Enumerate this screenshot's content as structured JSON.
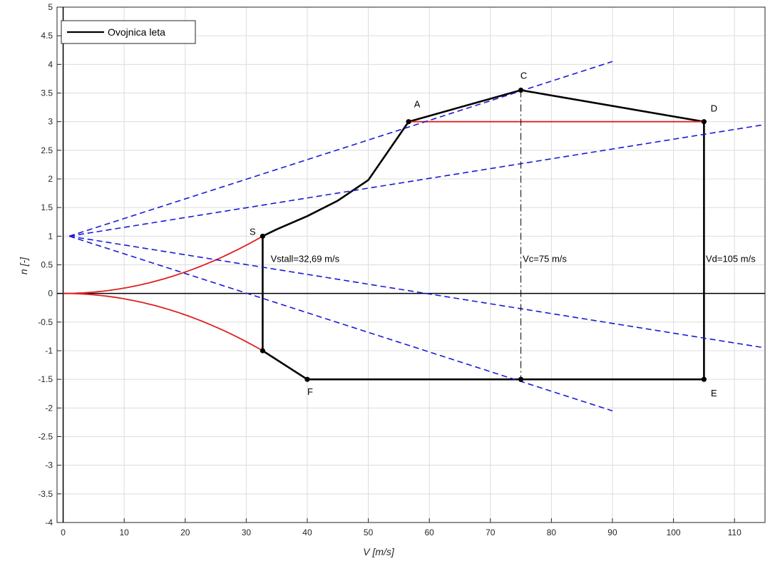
{
  "chart_data": {
    "type": "line",
    "xlabel": "V [m/s]",
    "ylabel": "n [-]",
    "xlim": [
      -1,
      115
    ],
    "ylim": [
      -4,
      5
    ],
    "xticks": [
      0,
      10,
      20,
      30,
      40,
      50,
      60,
      70,
      80,
      90,
      100,
      110
    ],
    "yticks": [
      5,
      4.5,
      4,
      3.5,
      3,
      2.5,
      2,
      1.5,
      1,
      0.5,
      0,
      -0.5,
      -1,
      -1.5,
      -2,
      -2.5,
      -3,
      -3.5,
      -4
    ],
    "grid": true,
    "legend": {
      "location": "top-left",
      "entries": [
        "Ovojnica leta"
      ]
    },
    "series": [
      {
        "name": "Ovojnica leta",
        "style": "solid",
        "color": "#000000",
        "points": [
          [
            32.69,
            1.0
          ],
          [
            35,
            1.12
          ],
          [
            40,
            1.35
          ],
          [
            45,
            1.62
          ],
          [
            50,
            1.98
          ],
          [
            56.6,
            3.0
          ],
          [
            75,
            3.55
          ],
          [
            105,
            3.0
          ],
          [
            105,
            -1.5
          ],
          [
            75,
            -1.5
          ],
          [
            40,
            -1.5
          ],
          [
            32.69,
            -1.0
          ],
          [
            32.69,
            1.0
          ]
        ],
        "markers": [
          [
            32.69,
            1.0
          ],
          [
            56.6,
            3.0
          ],
          [
            75,
            3.55
          ],
          [
            105,
            3.0
          ],
          [
            105,
            -1.5
          ],
          [
            75,
            -1.5
          ],
          [
            40,
            -1.5
          ],
          [
            32.69,
            -1.0
          ]
        ]
      },
      {
        "style": "solid",
        "color": "#e02020",
        "kind": "stall-curve",
        "sign": 1,
        "v_stall": 32.69
      },
      {
        "style": "solid",
        "color": "#e02020",
        "kind": "stall-curve",
        "sign": -1,
        "v_stall": 32.69
      },
      {
        "style": "solid",
        "color": "#e02020",
        "points": [
          [
            56.6,
            3.0
          ],
          [
            105,
            3.0
          ]
        ]
      },
      {
        "style": "dashed",
        "color": "#1a1ad6",
        "points": [
          [
            1,
            1.0
          ],
          [
            90,
            4.05
          ]
        ]
      },
      {
        "style": "dashed",
        "color": "#1a1ad6",
        "points": [
          [
            1,
            1.0
          ],
          [
            115,
            2.95
          ]
        ]
      },
      {
        "style": "dashed",
        "color": "#1a1ad6",
        "points": [
          [
            1,
            1.0
          ],
          [
            115,
            -0.95
          ]
        ]
      },
      {
        "style": "dashed",
        "color": "#1a1ad6",
        "points": [
          [
            1,
            1.0
          ],
          [
            90,
            -2.05
          ]
        ]
      },
      {
        "style": "dashdot",
        "color": "#000000",
        "points": [
          [
            75,
            3.55
          ],
          [
            75,
            -1.5
          ]
        ]
      }
    ],
    "point_labels": [
      {
        "text": "S",
        "x": 32.69,
        "y": 1.0
      },
      {
        "text": "A",
        "x": 56.6,
        "y": 3.0
      },
      {
        "text": "C",
        "x": 75,
        "y": 3.55
      },
      {
        "text": "D",
        "x": 105,
        "y": 3.0
      },
      {
        "text": "E",
        "x": 105,
        "y": -1.5
      },
      {
        "text": "F",
        "x": 40,
        "y": -1.5
      }
    ],
    "annotations": [
      {
        "text": "Vstall=32,69 m/s",
        "x": 34,
        "y": 0.55
      },
      {
        "text": "Vc=75 m/s",
        "x": 75.3,
        "y": 0.55
      },
      {
        "text": "Vd=105 m/s",
        "x": 105.3,
        "y": 0.55
      }
    ]
  }
}
